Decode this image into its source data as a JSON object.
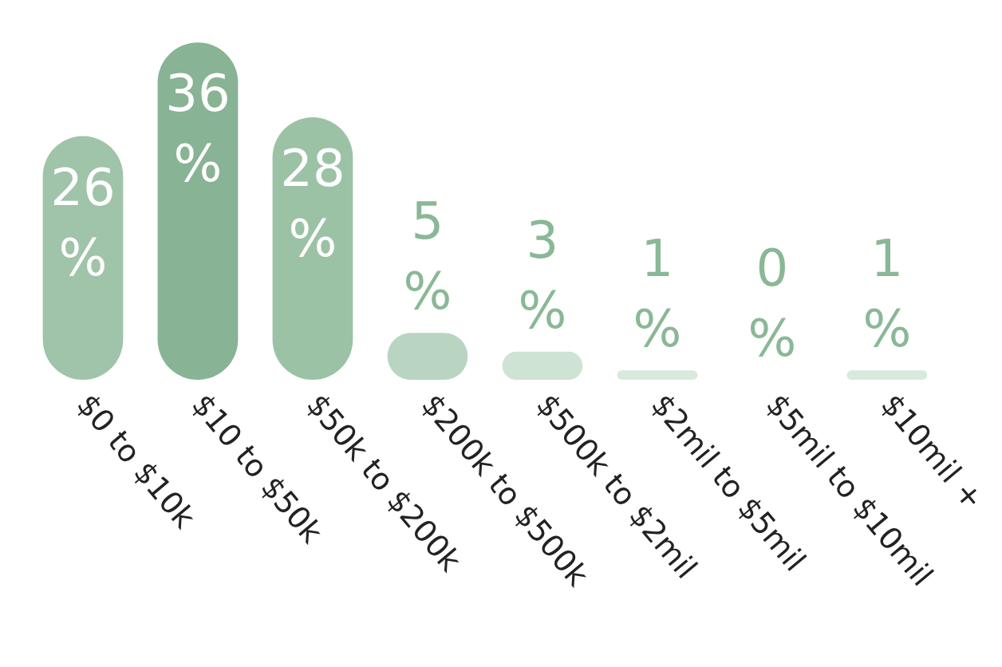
{
  "chart_data": {
    "type": "bar",
    "categories": [
      "$0 to $10k",
      "$10 to $50k",
      "$50k to $200k",
      "$200k to $500k",
      "$500k to $2mil",
      "$2mil to $5mil",
      "$5mil to $10mil",
      "$10mil +"
    ],
    "values": [
      26,
      36,
      28,
      5,
      3,
      1,
      0,
      1
    ],
    "colors": [
      "#9fc4a9",
      "#88b394",
      "#9cc2a5",
      "#b9d5c1",
      "#cfe3d5",
      "#d8e9de",
      "#d8e9de",
      "#d8e9de"
    ],
    "value_labels": [
      "26%",
      "36%",
      "28%",
      "5%",
      "3%",
      "1%",
      "0%",
      "1%"
    ]
  }
}
